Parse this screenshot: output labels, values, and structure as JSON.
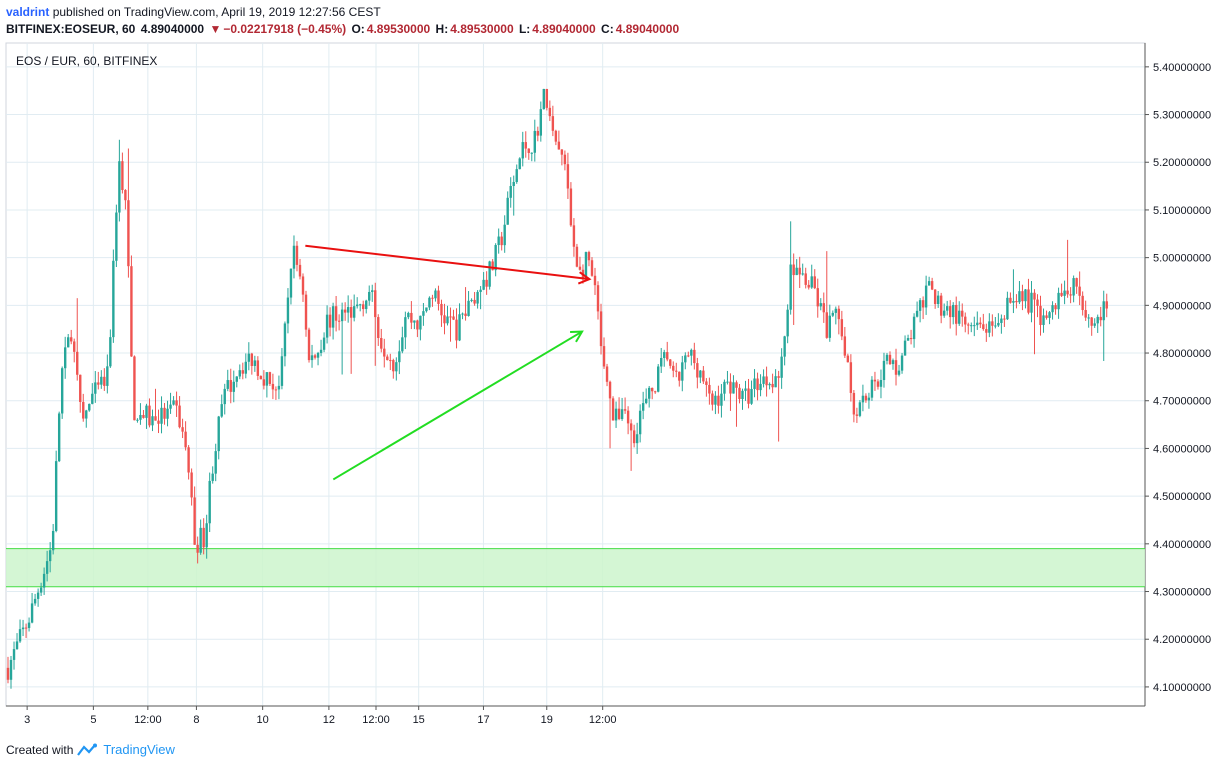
{
  "header": {
    "user": "valdrint",
    "published_text": "published on TradingView.com, April 19, 2019 12:27:56 CEST",
    "symbol": "BITFINEX:EOSEUR, 60",
    "last": "4.89040000",
    "arrow_icon": "triangle-down-icon",
    "change": "−0.02217918 (−0.45%)",
    "o_label": "O:",
    "o_value": "4.89530000",
    "h_label": "H:",
    "h_value": "4.89530000",
    "l_label": "L:",
    "l_value": "4.89040000",
    "c_label": "C:",
    "c_value": "4.89040000"
  },
  "footer": {
    "created_with": "Created with",
    "brand": "TradingView",
    "logo_icon": "tradingview-logo-icon"
  },
  "chart_data": {
    "type": "candlestick",
    "title": "EOS / EUR, 60, BITFINEX",
    "y_ticks": [
      "5.40000000",
      "5.30000000",
      "5.20000000",
      "5.10000000",
      "5.00000000",
      "4.90000000",
      "4.80000000",
      "4.70000000",
      "4.60000000",
      "4.50000000",
      "4.40000000",
      "4.30000000",
      "4.20000000",
      "4.10000000"
    ],
    "x_ticks": [
      "3",
      "5",
      "12:00",
      "8",
      "10",
      "12",
      "12:00",
      "15",
      "17",
      "19",
      "12:00"
    ],
    "ylim": [
      4.06,
      5.45
    ],
    "grid": true,
    "colors": {
      "up": "#26a69a",
      "down": "#ef5350",
      "resistance": "#e91010",
      "support": "#22dd22",
      "zone_fill": "#ccf5cc",
      "zone_line": "#44dd44",
      "grid": "#e1ecf2",
      "axis": "#131722"
    },
    "path": [
      [
        0,
        4.14
      ],
      [
        1.5,
        4.25
      ],
      [
        3,
        4.4
      ],
      [
        3.6,
        4.75
      ],
      [
        4.3,
        4.85
      ],
      [
        5,
        4.65
      ],
      [
        5.6,
        4.7
      ],
      [
        6.8,
        4.75
      ],
      [
        7.5,
        5.2
      ],
      [
        8,
        5.12
      ],
      [
        8.5,
        4.68
      ],
      [
        9.8,
        4.66
      ],
      [
        11.5,
        4.68
      ],
      [
        12.2,
        4.58
      ],
      [
        12.7,
        4.4
      ],
      [
        13.4,
        4.42
      ],
      [
        13.8,
        4.55
      ],
      [
        14.6,
        4.7
      ],
      [
        15.6,
        4.77
      ],
      [
        16.6,
        4.79
      ],
      [
        17.7,
        4.74
      ],
      [
        18.5,
        4.73
      ],
      [
        19.3,
        5.02
      ],
      [
        20.0,
        4.95
      ],
      [
        20.4,
        4.78
      ],
      [
        21,
        4.8
      ],
      [
        21.7,
        4.87
      ],
      [
        22.5,
        4.88
      ],
      [
        23.5,
        4.89
      ],
      [
        24.6,
        4.93
      ],
      [
        25.3,
        4.83
      ],
      [
        26.3,
        4.78
      ],
      [
        27.0,
        4.88
      ],
      [
        28.0,
        4.86
      ],
      [
        28.8,
        4.93
      ],
      [
        29.5,
        4.88
      ],
      [
        30.5,
        4.85
      ],
      [
        31,
        4.88
      ],
      [
        32,
        4.93
      ],
      [
        32.9,
        4.98
      ],
      [
        33.6,
        5.05
      ],
      [
        34.2,
        5.15
      ],
      [
        35.0,
        5.23
      ],
      [
        35.8,
        5.25
      ],
      [
        36.5,
        5.35
      ],
      [
        37.0,
        5.25
      ],
      [
        37.8,
        5.2
      ],
      [
        38.3,
        5.05
      ],
      [
        38.9,
        4.96
      ],
      [
        39.4,
        5.0
      ],
      [
        40.0,
        4.9
      ],
      [
        40.5,
        4.75
      ],
      [
        41.2,
        4.65
      ],
      [
        41.8,
        4.7
      ],
      [
        42.4,
        4.62
      ],
      [
        43,
        4.68
      ],
      [
        43.5,
        4.7
      ],
      [
        44.1,
        4.75
      ],
      [
        44.8,
        4.8
      ],
      [
        45.3,
        4.73
      ],
      [
        46.3,
        4.8
      ],
      [
        47.1,
        4.76
      ],
      [
        47.7,
        4.69
      ],
      [
        48.5,
        4.72
      ],
      [
        49.2,
        4.74
      ],
      [
        50.0,
        4.7
      ],
      [
        50.9,
        4.74
      ],
      [
        51.8,
        4.75
      ],
      [
        52.5,
        4.76
      ],
      [
        53.2,
        4.98
      ],
      [
        54.0,
        4.96
      ],
      [
        54.8,
        4.93
      ],
      [
        55.6,
        4.85
      ],
      [
        56.3,
        4.88
      ],
      [
        57.0,
        4.8
      ],
      [
        57.4,
        4.68
      ],
      [
        58.1,
        4.71
      ],
      [
        58.8,
        4.73
      ],
      [
        59.6,
        4.78
      ],
      [
        60.4,
        4.77
      ],
      [
        61.2,
        4.83
      ],
      [
        61.9,
        4.89
      ],
      [
        62.6,
        4.93
      ],
      [
        63.3,
        4.9
      ],
      [
        64.1,
        4.89
      ],
      [
        64.8,
        4.86
      ],
      [
        65.6,
        4.84
      ],
      [
        66.4,
        4.86
      ],
      [
        67.0,
        4.83
      ],
      [
        67.6,
        4.86
      ],
      [
        68.2,
        4.93
      ],
      [
        69.0,
        4.92
      ],
      [
        69.6,
        4.9
      ],
      [
        70.3,
        4.87
      ],
      [
        71.0,
        4.89
      ],
      [
        71.8,
        4.94
      ],
      [
        72.5,
        4.95
      ],
      [
        73.0,
        4.9
      ],
      [
        73.6,
        4.86
      ],
      [
        74.2,
        4.88
      ],
      [
        74.7,
        4.89
      ]
    ],
    "x_axis_ticks_at": [
      1.3,
      5.8,
      9.5,
      12.8,
      17.3,
      21.8,
      25.0,
      27.9,
      32.3,
      36.6,
      40.4
    ]
  },
  "annotations": {
    "resistance_line": {
      "from": [
        20.2,
        5.025
      ],
      "to": [
        39.5,
        4.955
      ]
    },
    "support_line": {
      "from": [
        22.1,
        4.535
      ],
      "to": [
        39.0,
        4.845
      ]
    },
    "demand_zone": {
      "top": 4.39,
      "bottom": 4.31
    }
  }
}
